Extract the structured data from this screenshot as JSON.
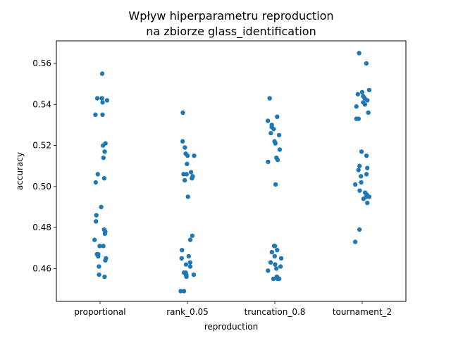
{
  "chart_data": {
    "type": "scatter",
    "title_line1": "Wpływ hiperparametru reproduction",
    "title_line2": "na zbiorze glass_identification",
    "xlabel": "reproduction",
    "ylabel": "accuracy",
    "ylim": [
      0.444,
      0.571
    ],
    "yticks": [
      {
        "value": 0.46,
        "label": "0.46"
      },
      {
        "value": 0.48,
        "label": "0.48"
      },
      {
        "value": 0.5,
        "label": "0.50"
      },
      {
        "value": 0.52,
        "label": "0.52"
      },
      {
        "value": 0.54,
        "label": "0.54"
      },
      {
        "value": 0.56,
        "label": "0.56"
      }
    ],
    "grid": false,
    "categories": [
      "proportional",
      "rank_0.05",
      "truncation_0.8",
      "tournament_2"
    ],
    "point_color": "#1f77b4",
    "series": [
      {
        "category": "proportional",
        "values": [
          0.555,
          0.543,
          0.543,
          0.542,
          0.541,
          0.535,
          0.535,
          0.521,
          0.52,
          0.517,
          0.514,
          0.506,
          0.504,
          0.502,
          0.49,
          0.486,
          0.483,
          0.479,
          0.478,
          0.477,
          0.474,
          0.471,
          0.471,
          0.467,
          0.467,
          0.466,
          0.465,
          0.464,
          0.461,
          0.457,
          0.456
        ]
      },
      {
        "category": "rank_0.05",
        "values": [
          0.536,
          0.522,
          0.519,
          0.516,
          0.515,
          0.515,
          0.511,
          0.507,
          0.506,
          0.506,
          0.505,
          0.504,
          0.503,
          0.495,
          0.476,
          0.474,
          0.469,
          0.466,
          0.465,
          0.463,
          0.462,
          0.461,
          0.458,
          0.458,
          0.457,
          0.457,
          0.457,
          0.456,
          0.449,
          0.449
        ]
      },
      {
        "category": "truncation_0.8",
        "values": [
          0.543,
          0.534,
          0.532,
          0.53,
          0.529,
          0.528,
          0.526,
          0.525,
          0.522,
          0.521,
          0.518,
          0.514,
          0.513,
          0.512,
          0.501,
          0.471,
          0.471,
          0.469,
          0.468,
          0.466,
          0.465,
          0.463,
          0.462,
          0.461,
          0.46,
          0.459,
          0.456,
          0.456,
          0.455,
          0.455,
          0.455
        ]
      },
      {
        "category": "tournament_2",
        "values": [
          0.565,
          0.56,
          0.547,
          0.546,
          0.545,
          0.544,
          0.543,
          0.542,
          0.541,
          0.54,
          0.539,
          0.536,
          0.533,
          0.533,
          0.517,
          0.515,
          0.51,
          0.509,
          0.508,
          0.506,
          0.505,
          0.502,
          0.501,
          0.498,
          0.497,
          0.496,
          0.495,
          0.495,
          0.494,
          0.492,
          0.479,
          0.473
        ]
      }
    ]
  }
}
